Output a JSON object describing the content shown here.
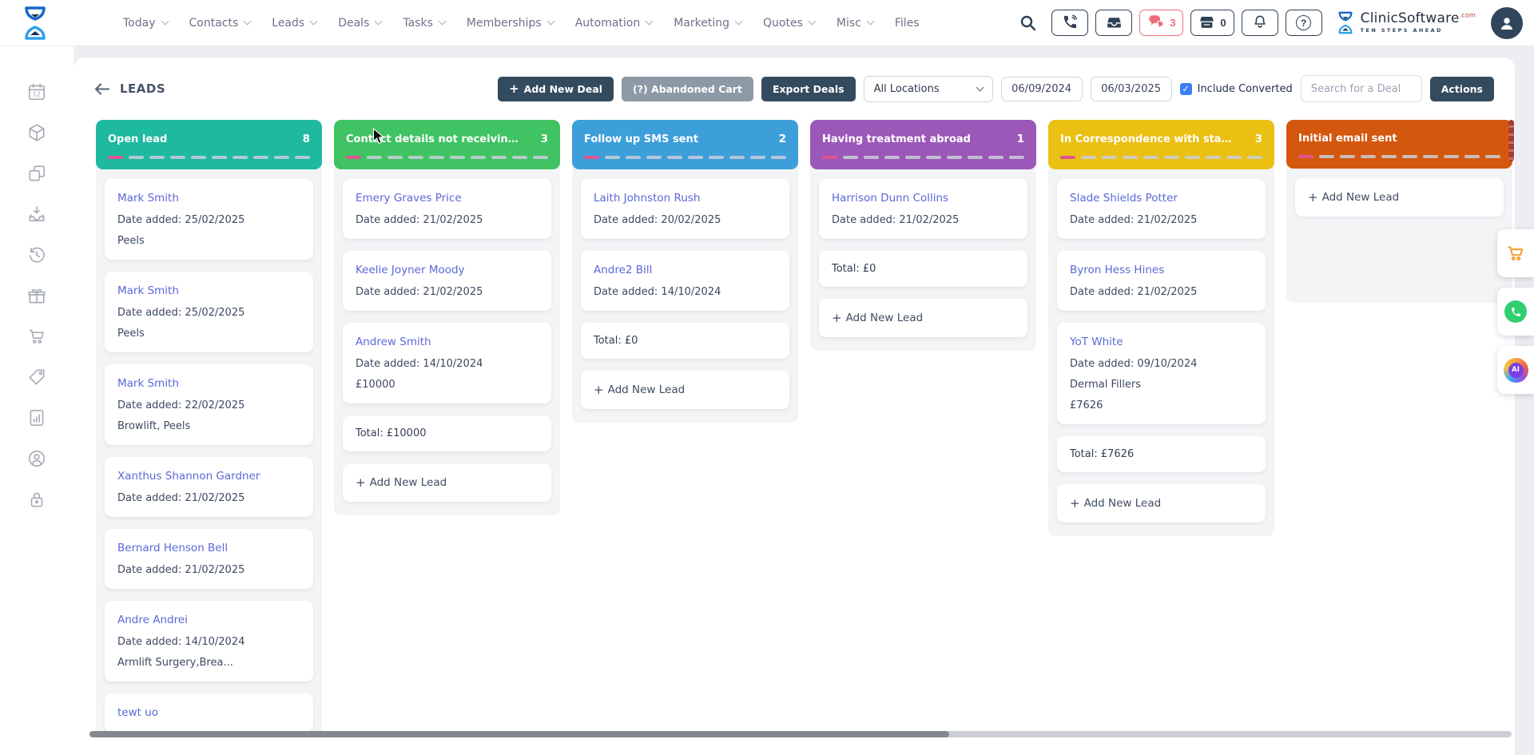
{
  "topbar": {
    "nav_items": [
      {
        "label": "Today",
        "dropdown": true
      },
      {
        "label": "Contacts",
        "dropdown": true
      },
      {
        "label": "Leads",
        "dropdown": true
      },
      {
        "label": "Deals",
        "dropdown": true
      },
      {
        "label": "Tasks",
        "dropdown": true
      },
      {
        "label": "Memberships",
        "dropdown": true
      },
      {
        "label": "Automation",
        "dropdown": true
      },
      {
        "label": "Marketing",
        "dropdown": true
      },
      {
        "label": "Quotes",
        "dropdown": true
      },
      {
        "label": "Misc",
        "dropdown": true
      },
      {
        "label": "Files",
        "dropdown": false
      }
    ],
    "chat_badge": "3",
    "till_count": "0",
    "icons": [
      "search-icon",
      "phone-call-icon",
      "inbox-icon",
      "chat-icon",
      "till-icon",
      "bell-icon",
      "help-icon"
    ],
    "brand": {
      "name": "ClinicSoftware",
      "tld": ".com",
      "tagline": "TEN STEPS AHEAD"
    }
  },
  "sidebar": {
    "icons": [
      "calendar-icon",
      "package-icon",
      "copies-icon",
      "inbox-tray-icon",
      "history-icon",
      "gift-icon",
      "cart-icon",
      "tag-icon",
      "report-icon",
      "support-icon",
      "lock-icon"
    ]
  },
  "header": {
    "title": "LEADS",
    "add_new_deal": "Add New Deal",
    "abandoned_cart": "(?) Abandoned Cart",
    "export_deals": "Export Deals",
    "location": "All Locations",
    "date_from": "06/09/2024",
    "date_to": "06/03/2025",
    "include_converted": "Include Converted",
    "search_placeholder": "Search for a Deal",
    "actions": "Actions"
  },
  "board": {
    "add_new_label": "Add New Lead",
    "progress_first_color": "#e0548f",
    "progress_rest_color": "#c9ced9",
    "columns": [
      {
        "title": "Open lead",
        "count": "8",
        "color": "#1fb9a0",
        "cards": [
          {
            "name": "Mark Smith",
            "date": "Date added: 25/02/2025",
            "extras": [
              "Peels"
            ]
          },
          {
            "name": "Mark Smith",
            "date": "Date added: 25/02/2025",
            "extras": [
              "Peels"
            ]
          },
          {
            "name": "Mark Smith",
            "date": "Date added: 22/02/2025",
            "extras": [
              "Browlift, Peels"
            ]
          },
          {
            "name": "Xanthus Shannon Gardner",
            "date": "Date added: 21/02/2025",
            "extras": []
          },
          {
            "name": "Bernard Henson Bell",
            "date": "Date added: 21/02/2025",
            "extras": []
          },
          {
            "name": "Andre Andrei",
            "date": "Date added: 14/10/2024",
            "extras": [
              "Armlift Surgery,Brea..."
            ]
          },
          {
            "name": "tewt uo",
            "date": "",
            "extras": []
          }
        ],
        "total": "",
        "add_new": false
      },
      {
        "title": "Contact details not receiving o...",
        "count": "3",
        "color": "#40c363",
        "cards": [
          {
            "name": "Emery Graves Price",
            "date": "Date added: 21/02/2025",
            "extras": []
          },
          {
            "name": "Keelie Joyner Moody",
            "date": "Date added: 21/02/2025",
            "extras": []
          },
          {
            "name": "Andrew Smith",
            "date": "Date added: 14/10/2024",
            "extras": [
              "£10000"
            ]
          }
        ],
        "total": "Total: £10000",
        "add_new": true
      },
      {
        "title": "Follow up SMS sent",
        "count": "2",
        "color": "#3d9fd9",
        "cards": [
          {
            "name": "Laith Johnston Rush",
            "date": "Date added: 20/02/2025",
            "extras": []
          },
          {
            "name": "Andre2 Bill",
            "date": "Date added: 14/10/2024",
            "extras": []
          }
        ],
        "total": "Total: £0",
        "add_new": true
      },
      {
        "title": "Having treatment abroad",
        "count": "1",
        "color": "#9b58b8",
        "cards": [
          {
            "name": "Harrison Dunn Collins",
            "date": "Date added: 21/02/2025",
            "extras": []
          }
        ],
        "total": "Total: £0",
        "add_new": true
      },
      {
        "title": "In Correspondence with staff me...",
        "count": "3",
        "color": "#eac013",
        "cards": [
          {
            "name": "Slade Shields Potter",
            "date": "Date added: 21/02/2025",
            "extras": []
          },
          {
            "name": "Byron Hess Hines",
            "date": "Date added: 21/02/2025",
            "extras": []
          },
          {
            "name": "YoT White",
            "date": "Date added: 09/10/2024",
            "extras": [
              "Dermal Fillers",
              "£7626"
            ]
          }
        ],
        "total": "Total: £7626",
        "add_new": true
      },
      {
        "title": "Initial email sent",
        "count": "",
        "color": "#d4570e",
        "cards": [],
        "total": "",
        "add_new": true
      }
    ]
  },
  "fabs": {
    "items": [
      "cart-fab",
      "whatsapp-fab",
      "ai-fab"
    ],
    "ai_label": "AI"
  },
  "colors": {
    "accent_navy": "#344a5e",
    "chat_red": "#ed6d76",
    "link_blue": "#5a68d8",
    "column_bg": "#f3f4f6"
  }
}
